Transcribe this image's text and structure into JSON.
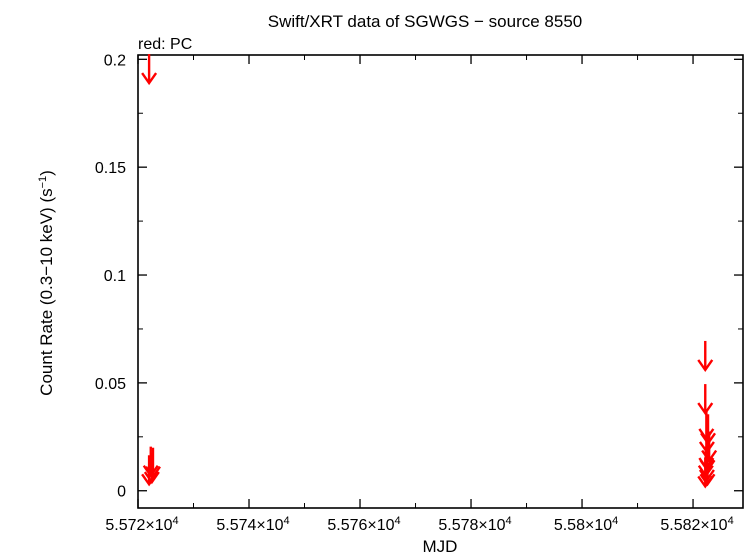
{
  "chart_data": {
    "type": "scatter",
    "title": "Swift/XRT data of SGWGS − source 8550",
    "subtitle": "red: PC",
    "xlabel": "MJD",
    "ylabel_main": "Count Rate (0.3−10 keV) (s",
    "ylabel_sup": "−1",
    "ylabel_tail": ")",
    "xlim": [
      55720,
      55829
    ],
    "ylim": [
      -0.008,
      0.202
    ],
    "x_ticks": [
      {
        "value": 55720,
        "mant": "5.572×10",
        "exp": "4"
      },
      {
        "value": 55740,
        "mant": "5.574×10",
        "exp": "4"
      },
      {
        "value": 55760,
        "mant": "5.576×10",
        "exp": "4"
      },
      {
        "value": 55780,
        "mant": "5.578×10",
        "exp": "4"
      },
      {
        "value": 55800,
        "mant": "5.58×10",
        "exp": "4"
      },
      {
        "value": 55820,
        "mant": "5.582×10",
        "exp": "4"
      }
    ],
    "y_ticks": [
      {
        "value": 0,
        "label": "0"
      },
      {
        "value": 0.05,
        "label": "0.05"
      },
      {
        "value": 0.1,
        "label": "0.1"
      },
      {
        "value": 0.15,
        "label": "0.15"
      },
      {
        "value": 0.2,
        "label": "0.2"
      }
    ],
    "grid": false,
    "series": [
      {
        "mode": "PC",
        "color": "#ff0000",
        "marker": "upper-limit-arrow",
        "points": [
          {
            "x": 55722.0,
            "y": 0.189
          },
          {
            "x": 55722.3,
            "y": 0.007
          },
          {
            "x": 55722.0,
            "y": 0.003
          },
          {
            "x": 55722.5,
            "y": 0.004
          },
          {
            "x": 55722.7,
            "y": 0.0065
          },
          {
            "x": 55822.2,
            "y": 0.056
          },
          {
            "x": 55822.2,
            "y": 0.036
          },
          {
            "x": 55822.4,
            "y": 0.024
          },
          {
            "x": 55822.5,
            "y": 0.018
          },
          {
            "x": 55822.7,
            "y": 0.022
          },
          {
            "x": 55822.9,
            "y": 0.014
          },
          {
            "x": 55822.4,
            "y": 0.0105
          },
          {
            "x": 55822.6,
            "y": 0.0095
          },
          {
            "x": 55822.3,
            "y": 0.007
          },
          {
            "x": 55822.5,
            "y": 0.005
          },
          {
            "x": 55822.6,
            "y": 0.003
          },
          {
            "x": 55822.2,
            "y": 0.002
          }
        ]
      }
    ]
  }
}
